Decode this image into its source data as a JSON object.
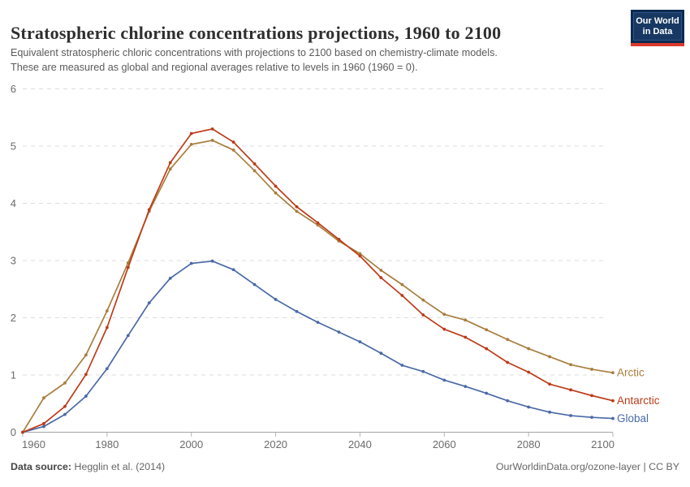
{
  "header": {
    "title": "Stratospheric chlorine concentrations projections, 1960 to 2100",
    "subtitle_lines": [
      "Equivalent stratospheric chloric concentrations with projections to 2100 based on chemistry-climate models.",
      "These are measured as global and regional averages relative to levels in 1960 (1960 = 0)."
    ],
    "logo": {
      "line1": "Our World",
      "line2": "in Data",
      "navy_outer": "#0a2b50",
      "navy_inner": "#173862",
      "red_bar": "#d93a2d"
    }
  },
  "chart_data": {
    "type": "line",
    "title": "Stratospheric chlorine concentrations projections, 1960 to 2100",
    "xlabel": "",
    "ylabel": "",
    "ylim": [
      0,
      6
    ],
    "yticks": [
      0,
      1,
      2,
      3,
      4,
      5,
      6
    ],
    "xticks": [
      1960,
      1980,
      2000,
      2020,
      2040,
      2060,
      2080,
      2100
    ],
    "grid": "horizontal-dashed",
    "legend": "line-end-labels",
    "x": [
      1960,
      1965,
      1970,
      1975,
      1980,
      1985,
      1990,
      1995,
      2000,
      2005,
      2010,
      2015,
      2020,
      2025,
      2030,
      2035,
      2040,
      2045,
      2050,
      2055,
      2060,
      2065,
      2070,
      2075,
      2080,
      2085,
      2090,
      2095,
      2100
    ],
    "series": [
      {
        "name": "Arctic",
        "color": "#a87e3e",
        "values": [
          0,
          0.6,
          0.86,
          1.35,
          2.12,
          2.96,
          3.86,
          4.6,
          5.03,
          5.1,
          4.93,
          4.57,
          4.18,
          3.86,
          3.62,
          3.34,
          3.12,
          2.83,
          2.58,
          2.31,
          2.06,
          1.96,
          1.79,
          1.62,
          1.46,
          1.32,
          1.18,
          1.1,
          1.04
        ]
      },
      {
        "name": "Global",
        "color": "#4a69a7",
        "values": [
          0,
          0.1,
          0.31,
          0.63,
          1.11,
          1.69,
          2.26,
          2.69,
          2.95,
          2.99,
          2.84,
          2.58,
          2.32,
          2.11,
          1.92,
          1.75,
          1.58,
          1.38,
          1.17,
          1.06,
          0.91,
          0.8,
          0.68,
          0.55,
          0.44,
          0.35,
          0.29,
          0.26,
          0.24
        ]
      },
      {
        "name": "Antarctic",
        "color": "#bc3c19",
        "values": [
          0,
          0.15,
          0.45,
          1.01,
          1.83,
          2.88,
          3.89,
          4.71,
          5.22,
          5.3,
          5.07,
          4.69,
          4.3,
          3.94,
          3.66,
          3.37,
          3.08,
          2.7,
          2.39,
          2.05,
          1.8,
          1.66,
          1.46,
          1.22,
          1.05,
          0.84,
          0.74,
          0.64,
          0.55
        ]
      }
    ],
    "style": {
      "grid_color": "#dcdcdc",
      "axis_color": "#a3a3a3",
      "tick_mark_color": "#b5b5b5",
      "tick_text_color": "#6b6b6b"
    }
  },
  "footer": {
    "source_label": "Data source:",
    "source_value": " Hegglin et al. (2014)",
    "attribution": "OurWorldinData.org/ozone-layer | CC BY"
  }
}
